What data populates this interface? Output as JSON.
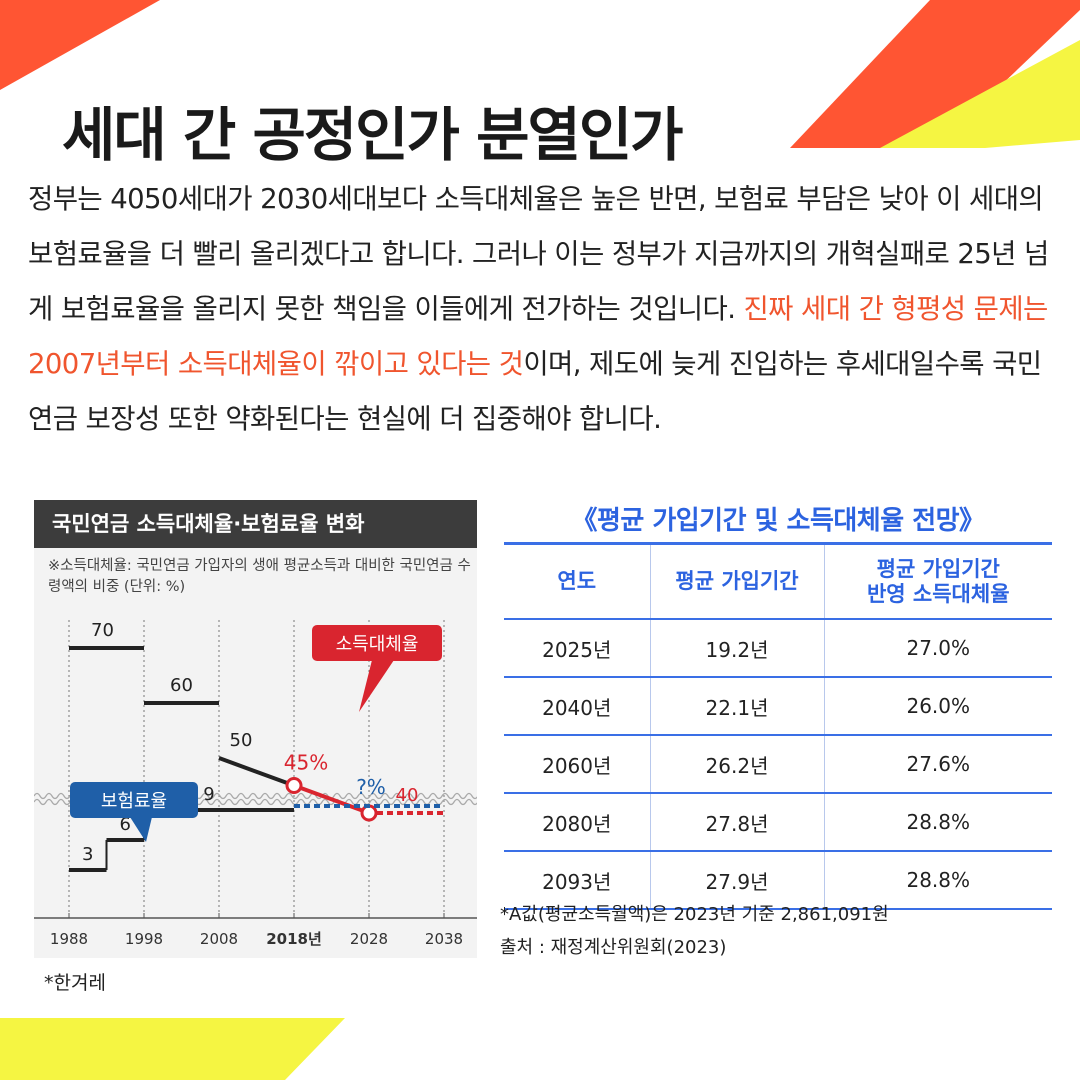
{
  "colors": {
    "accent_red": "#f0552e",
    "accent_yellow": "#f5f542",
    "table_blue": "#2c63e0",
    "chart_red": "#d9252f",
    "chart_blue": "#1f5fa8"
  },
  "headline": "세대 간 공정인가 분열인가",
  "body": {
    "part1": "정부는 4050세대가 2030세대보다 소득대체율은 높은 반면, 보험료 부담은 낮아 이 세대의 보험료율을 더 빨리 올리겠다고 합니다. 그러나 이는 정부가 지금까지의 개혁실패로 25년 넘게 보험료율을 올리지 못한 책임을 이들에게 전가하는 것입니다. ",
    "highlight": "진짜 세대 간 형평성 문제는 2007년부터 소득대체율이 깎이고 있다는 것",
    "part2": "이며, 제도에 늦게 진입하는 후세대일수록 국민연금 보장성 또한 약화된다는 현실에 더 집중해야 합니다."
  },
  "chart": {
    "header": "국민연금 소득대체율·보험료율 변화",
    "note": "※소득대체율: 국민연금 가입자의 생애 평균소득과 대비한 국민연금 수령액의 비중 (단위: %)",
    "source": "*한겨레"
  },
  "chart_data": {
    "type": "line",
    "title": "국민연금 소득대체율·보험료율 변화",
    "x_ticks": [
      "1988",
      "1998",
      "2008",
      "2018년",
      "2028",
      "2038"
    ],
    "series": [
      {
        "name": "소득대체율",
        "points": [
          {
            "x": 1988,
            "x_end": 1998,
            "value": 70,
            "label": "70"
          },
          {
            "x": 1998,
            "x_end": 2008,
            "value": 60,
            "label": "60"
          },
          {
            "x": 2008,
            "value": 50,
            "label": "50"
          },
          {
            "x": 2018,
            "value": 45,
            "label": "45%"
          },
          {
            "x": 2028,
            "value": 40,
            "label": "40"
          }
        ],
        "projection": {
          "from": 2028,
          "to": 2038,
          "value": 40
        }
      },
      {
        "name": "보험료율",
        "points": [
          {
            "x": 1988,
            "x_end": 1993,
            "value": 3,
            "label": "3"
          },
          {
            "x": 1993,
            "x_end": 1998,
            "value": 6,
            "label": "6"
          },
          {
            "x": 1998,
            "x_end": 2018,
            "value": 9,
            "label": "9"
          }
        ],
        "projection": {
          "from": 2018,
          "to": 2038,
          "label": "?%"
        }
      }
    ]
  },
  "table": {
    "title": "《평균 가입기간 및 소득대체율 전망》",
    "headers": [
      "연도",
      "평균 가입기간",
      "평균 가입기간\n반영 소득대체율"
    ],
    "rows": [
      [
        "2025년",
        "19.2년",
        "27.0%"
      ],
      [
        "2040년",
        "22.1년",
        "26.0%"
      ],
      [
        "2060년",
        "26.2년",
        "27.6%"
      ],
      [
        "2080년",
        "27.8년",
        "28.8%"
      ],
      [
        "2093년",
        "27.9년",
        "28.8%"
      ]
    ],
    "footnote1": "*A값(평균소득월액)은 2023년 기준 2,861,091원",
    "footnote2": "출처 : 재정계산위원회(2023)"
  }
}
